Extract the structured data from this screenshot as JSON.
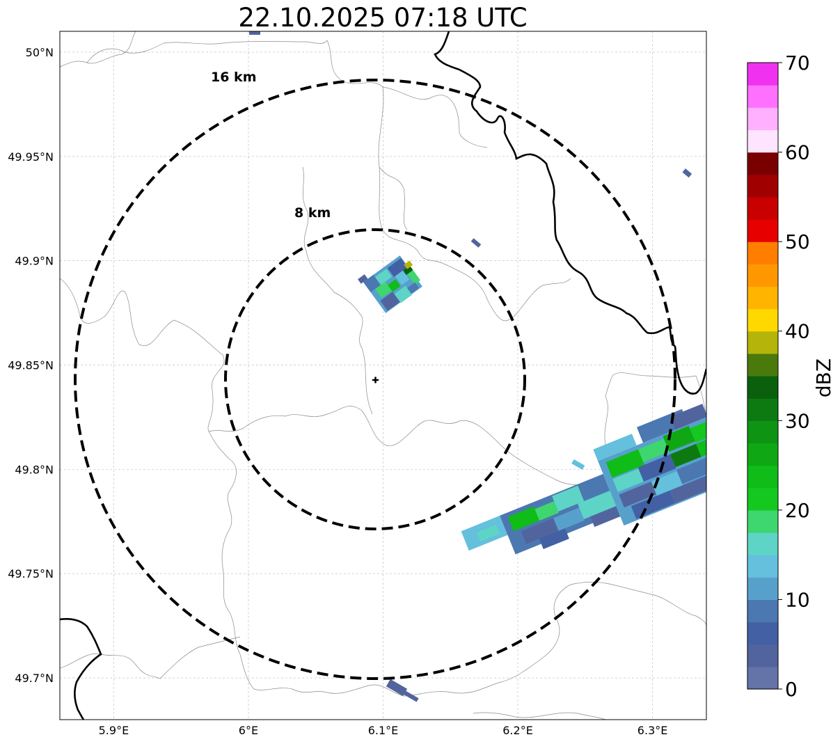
{
  "title": "22.10.2025 07:18 UTC",
  "map": {
    "lon_ticks": [
      {
        "value": 5.9,
        "label": "5.9°E"
      },
      {
        "value": 6.0,
        "label": "6°E"
      },
      {
        "value": 6.1,
        "label": "6.1°E"
      },
      {
        "value": 6.2,
        "label": "6.2°E"
      },
      {
        "value": 6.3,
        "label": "6.3°E"
      }
    ],
    "lat_ticks": [
      {
        "value": 50.0,
        "label": "50°N"
      },
      {
        "value": 49.95,
        "label": "49.95°N"
      },
      {
        "value": 49.9,
        "label": "49.9°N"
      },
      {
        "value": 49.85,
        "label": "49.85°N"
      },
      {
        "value": 49.8,
        "label": "49.8°N"
      },
      {
        "value": 49.75,
        "label": "49.75°N"
      },
      {
        "value": 49.7,
        "label": "49.7°N"
      }
    ],
    "lon_range": [
      5.86,
      6.34
    ],
    "lat_range": [
      49.68,
      50.01
    ],
    "gridlines": true,
    "radar_site": {
      "lon": 6.094,
      "lat": 49.843
    },
    "range_rings": [
      {
        "label": "8 km",
        "radius_km": 8
      },
      {
        "label": "16 km",
        "radius_km": 16
      }
    ]
  },
  "colorbar": {
    "label": "dBZ",
    "min": 0,
    "max": 70,
    "tick_labels": [
      "0",
      "10",
      "20",
      "30",
      "40",
      "50",
      "60",
      "70"
    ],
    "colors": [
      "#6474a8",
      "#52649e",
      "#4360a4",
      "#4b78b0",
      "#58a0cc",
      "#64c0dc",
      "#5ed4c6",
      "#3ed66e",
      "#14c820",
      "#0fbc18",
      "#0fa814",
      "#0e9412",
      "#0c7a10",
      "#0a600c",
      "#4a7a0c",
      "#b4b40a",
      "#ffd800",
      "#ffb400",
      "#ff9800",
      "#ff7e00",
      "#e60000",
      "#c80000",
      "#a00000",
      "#7a0000",
      "#ffe4ff",
      "#ffb0ff",
      "#ff70ff",
      "#f032f0"
    ]
  }
}
